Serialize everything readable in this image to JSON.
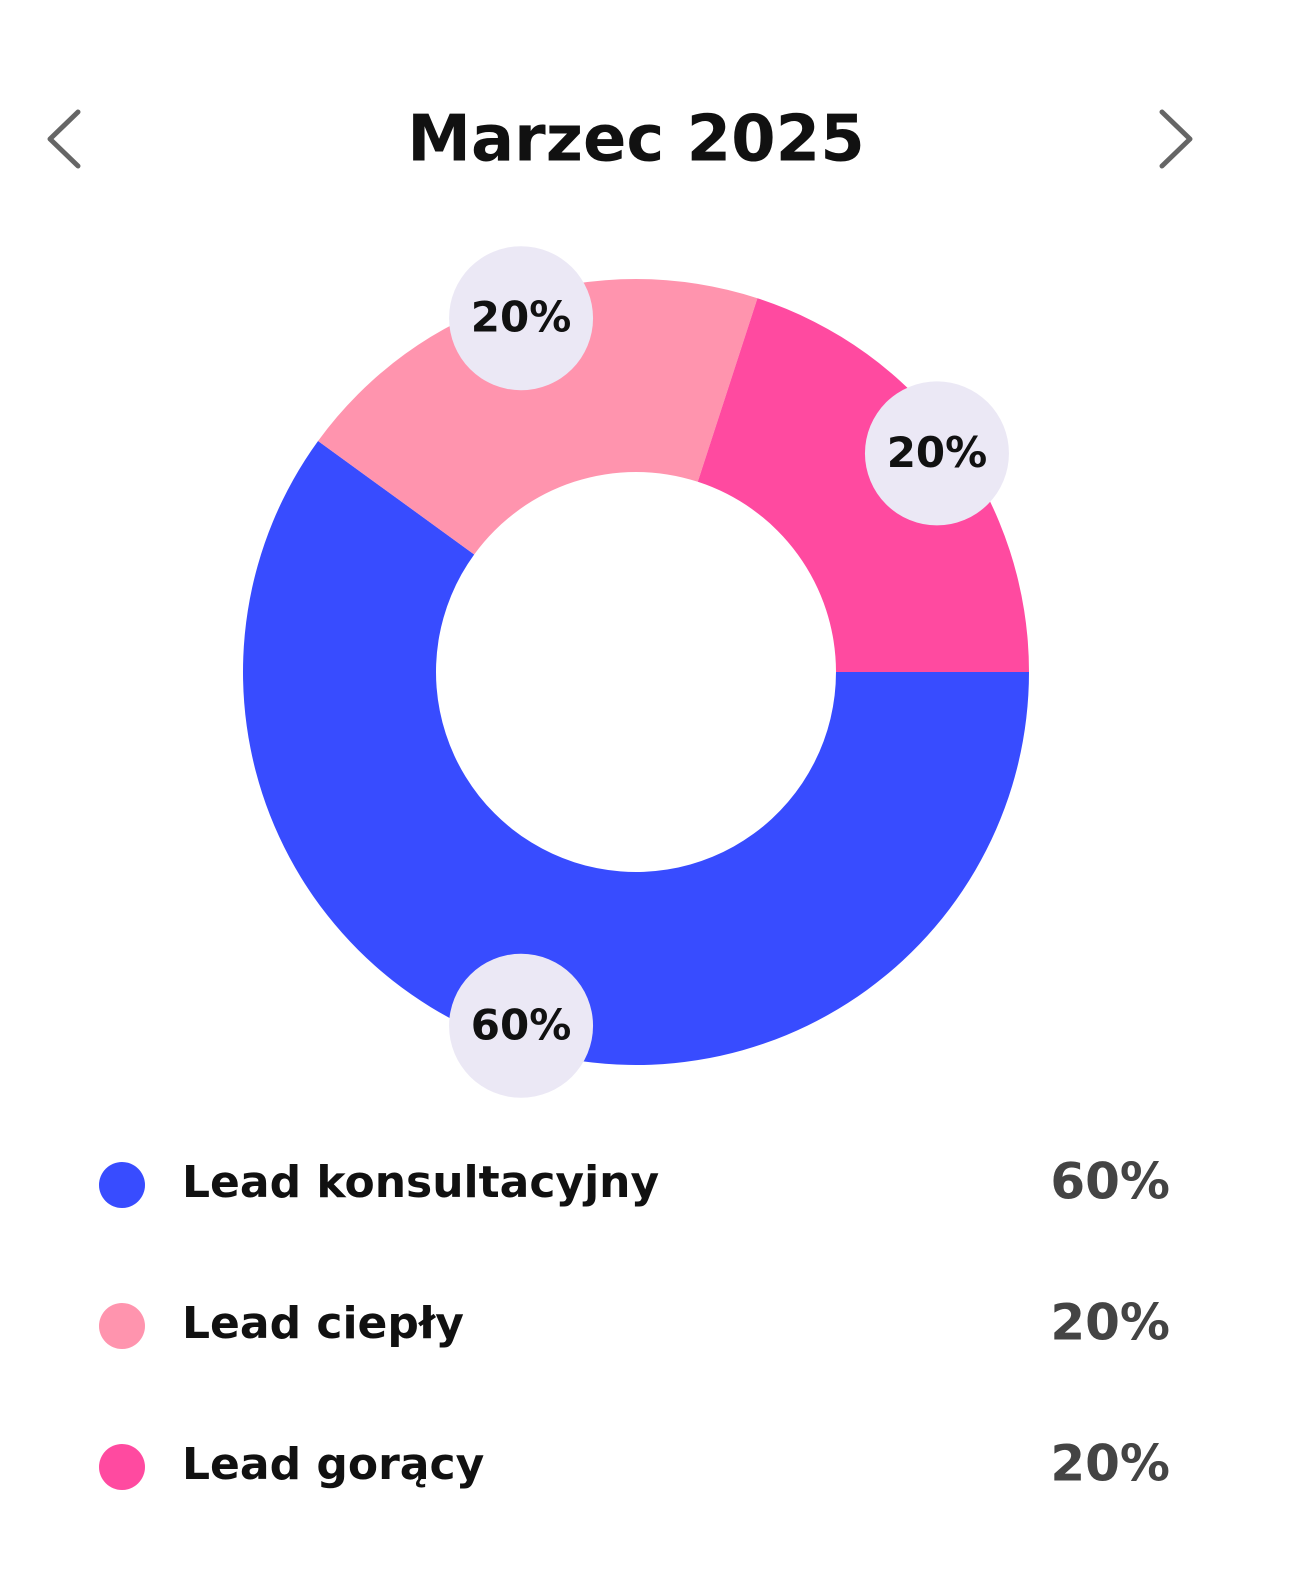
{
  "chart_data": {
    "type": "pie",
    "title": "Marzec 2025",
    "categories": [
      "Lead konsultacyjny",
      "Lead ciepły",
      "Lead gorący"
    ],
    "values": [
      60,
      20,
      20
    ],
    "value_labels": [
      "60%",
      "20%",
      "20%"
    ],
    "colors": [
      "#384cff",
      "#ff94ae",
      "#ff4aa0"
    ]
  }
}
